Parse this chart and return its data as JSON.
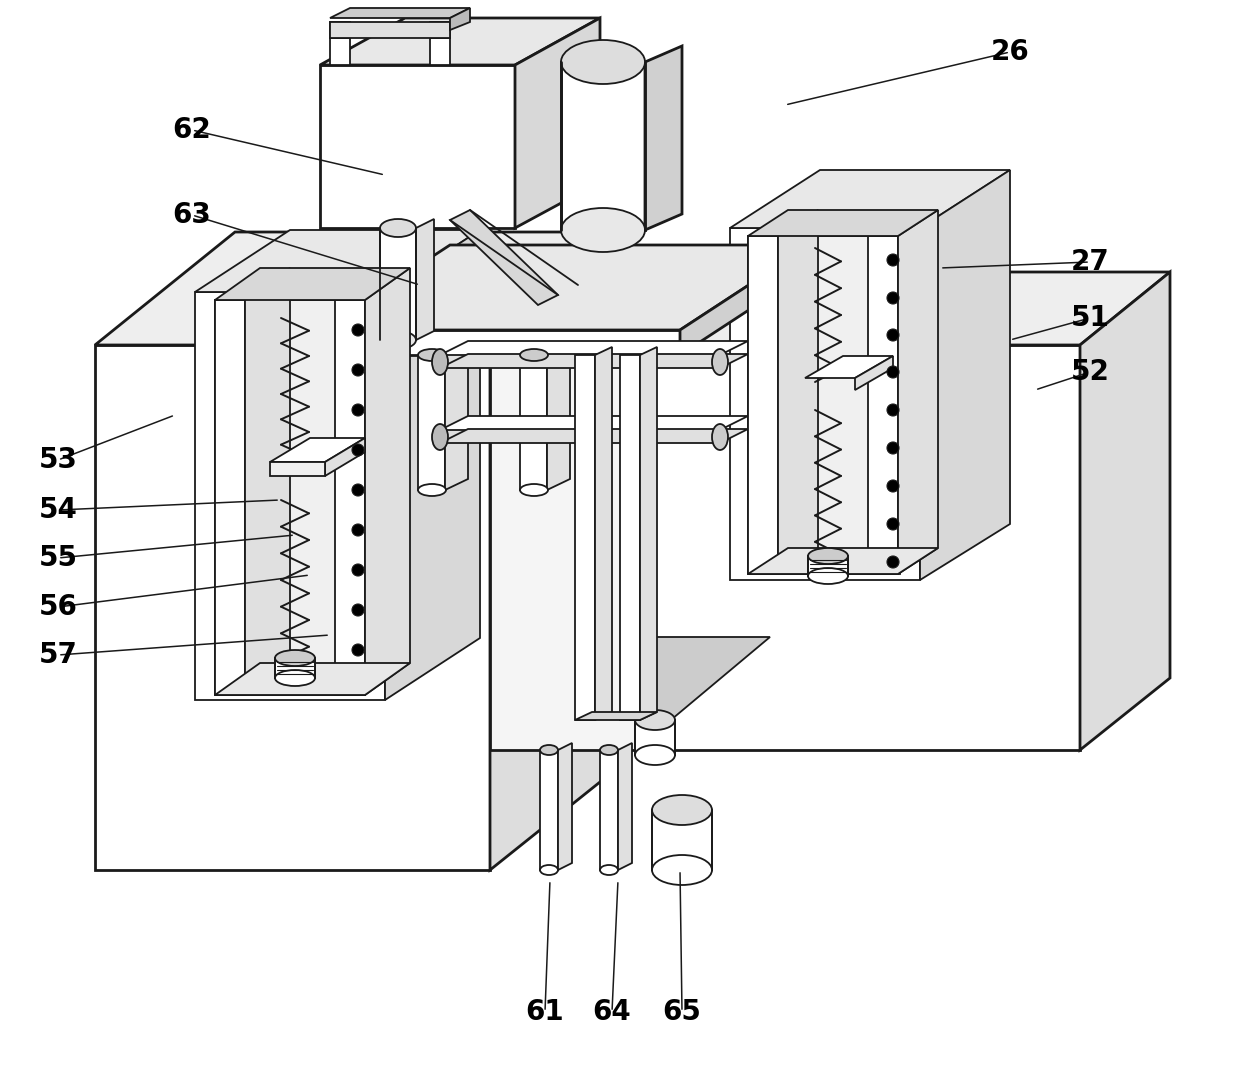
{
  "background_color": "#ffffff",
  "line_color": "#1a1a1a",
  "lw": 1.3,
  "lw2": 2.0,
  "label_fontsize": 20,
  "figsize": [
    12.4,
    10.74
  ],
  "dpi": 100,
  "labels": {
    "26": [
      1010,
      52,
      785,
      105
    ],
    "27": [
      1090,
      262,
      940,
      268
    ],
    "51": [
      1090,
      318,
      1010,
      340
    ],
    "52": [
      1090,
      372,
      1035,
      390
    ],
    "62": [
      192,
      130,
      385,
      175
    ],
    "63": [
      192,
      215,
      420,
      285
    ],
    "53": [
      58,
      460,
      175,
      415
    ],
    "54": [
      58,
      510,
      280,
      500
    ],
    "55": [
      58,
      558,
      295,
      535
    ],
    "56": [
      58,
      607,
      310,
      575
    ],
    "57": [
      58,
      655,
      330,
      635
    ],
    "61": [
      545,
      1012,
      550,
      880
    ],
    "64": [
      612,
      1012,
      618,
      880
    ],
    "65": [
      682,
      1012,
      680,
      870
    ]
  }
}
